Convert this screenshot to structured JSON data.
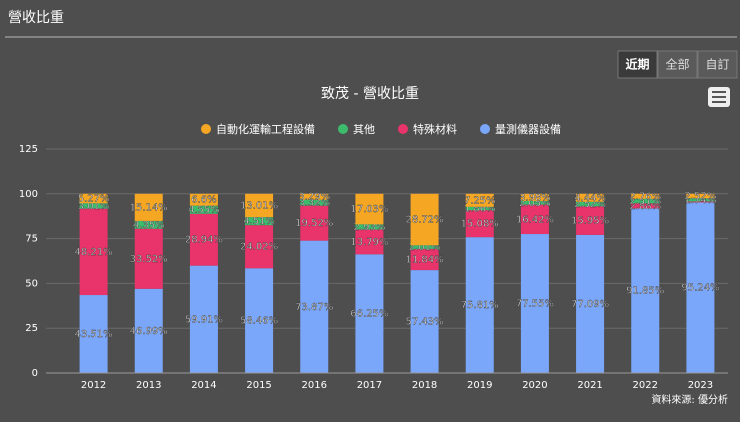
{
  "header": {
    "title": "營收比重"
  },
  "buttons": [
    "近期",
    "全部",
    "自訂"
  ],
  "source": "資料來源: 優分析",
  "chart_data": {
    "type": "stacked_bar",
    "title": "致茂 - 營收比重",
    "categories": [
      "2012",
      "2013",
      "2014",
      "2015",
      "2016",
      "2017",
      "2018",
      "2019",
      "2020",
      "2021",
      "2022",
      "2023"
    ],
    "ylim": [
      0,
      125
    ],
    "yticks": [
      0,
      25,
      50,
      75,
      100,
      125
    ],
    "grid": true,
    "series": [
      {
        "name": "自動化運輸工程設備",
        "color": "#f5a623",
        "values": [
          5.27,
          15.14,
          6.6,
          13.01,
          3.29,
          17.03,
          28.72,
          7.25,
          3.98,
          4.44,
          2.76,
          2.52
        ],
        "value_labels": [
          "5.27%",
          "15.14%",
          "6.6%",
          "13.01%",
          "3.29%",
          "17.03%",
          "28.72%",
          "7.25%",
          "3.98%",
          "4.44%",
          "2.76%",
          "2.52%"
        ]
      },
      {
        "name": "其他",
        "color": "#3dbb6c",
        "values": [
          3.01,
          4.35,
          4.55,
          4.51,
          3.32,
          2.93,
          2.01,
          1.86,
          2.05,
          2.52,
          2.51,
          1.74
        ],
        "value_labels": [
          "3.01%",
          "4.35%",
          "4.55%",
          "4.51%",
          "3.32%",
          "2.93%",
          "2.01%",
          "1.86%",
          "2.05%",
          "2.52%",
          "2.51%",
          "1.74%"
        ]
      },
      {
        "name": "特殊材料",
        "color": "#e9336b",
        "values": [
          48.21,
          33.52,
          28.94,
          24.02,
          19.52,
          13.79,
          11.84,
          15.08,
          16.42,
          15.95,
          2.88,
          0.5
        ],
        "value_labels": [
          "48.21%",
          "33.52%",
          "28.94%",
          "24.02%",
          "19.52%",
          "13.79%",
          "11.84%",
          "15.08%",
          "16.42%",
          "15.95%",
          "2.88%",
          null
        ]
      },
      {
        "name": "量測儀器設備",
        "color": "#7ba7fa",
        "values": [
          43.51,
          46.99,
          59.91,
          58.46,
          73.87,
          66.25,
          57.43,
          75.81,
          77.55,
          77.09,
          91.85,
          95.24
        ],
        "value_labels": [
          "43.51%",
          "46.99%",
          "59.91%",
          "58.46%",
          "73.87%",
          "66.25%",
          "57.43%",
          "75.81%",
          "77.55%",
          "77.09%",
          "91.85%",
          "95.24%"
        ]
      }
    ]
  }
}
